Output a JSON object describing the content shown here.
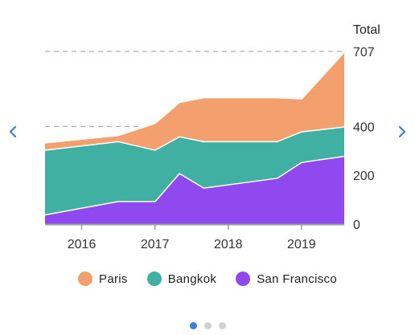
{
  "chart_data": {
    "type": "area",
    "stacked": true,
    "axis_title": "Total",
    "x_ticks": [
      "2016",
      "2017",
      "2018",
      "2019"
    ],
    "y_ticks": [
      0,
      200,
      400,
      707
    ],
    "dashed_gridlines_at": [
      400,
      707
    ],
    "xlim": [
      "2015-07",
      "2019-08"
    ],
    "ylim": [
      0,
      707
    ],
    "series": [
      {
        "name": "San Francisco",
        "color": "#9049ee",
        "x": [
          "2015-07",
          "2016-07",
          "2017-01",
          "2017-05",
          "2017-09",
          "2018-09",
          "2019-01",
          "2019-08"
        ],
        "values": [
          40,
          95,
          95,
          210,
          150,
          190,
          255,
          280
        ]
      },
      {
        "name": "Bangkok",
        "color": "#40b0a2",
        "x": [
          "2015-07",
          "2016-07",
          "2017-01",
          "2017-05",
          "2017-09",
          "2018-09",
          "2019-01",
          "2019-08"
        ],
        "values": [
          265,
          245,
          210,
          150,
          190,
          150,
          125,
          120
        ]
      },
      {
        "name": "Paris",
        "color": "#f3a06e",
        "x": [
          "2015-07",
          "2016-07",
          "2017-01",
          "2017-05",
          "2017-09",
          "2018-09",
          "2019-01",
          "2019-08"
        ],
        "values": [
          30,
          25,
          110,
          140,
          180,
          180,
          135,
          307
        ]
      }
    ],
    "legend_position": "bottom"
  },
  "legend": {
    "items": [
      {
        "label": "Paris",
        "color": "#f3a06e"
      },
      {
        "label": "Bangkok",
        "color": "#40b0a2"
      },
      {
        "label": "San Francisco",
        "color": "#9049ee"
      }
    ]
  },
  "navigation": {
    "left_icon": "chevron-left-icon",
    "right_icon": "chevron-right-icon",
    "arrow_color": "#3d7edb"
  },
  "pager": {
    "count": 3,
    "active": 0,
    "active_color": "#3d7edb",
    "inactive_color": "#d0d0d0"
  }
}
